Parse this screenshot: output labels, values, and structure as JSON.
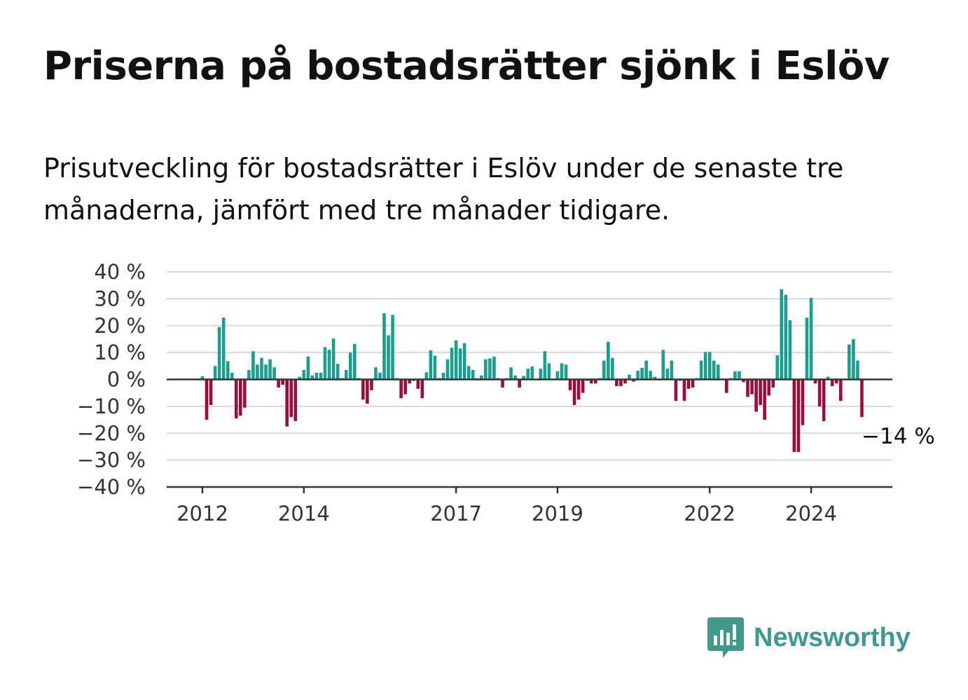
{
  "title": "Priserna på bostadsrätter sjönk i Eslöv",
  "subtitle": "Prisutveckling för bostadsrätter i Eslöv under de senaste tre månaderna, jämfört med tre månader tidigare.",
  "brand": {
    "name": "Newsworthy",
    "icon": "newsworthy-logo-icon"
  },
  "colors": {
    "positive": "#1a9e8f",
    "negative": "#9b0d3a",
    "grid": "#d9d9d9",
    "axis": "#333333",
    "brand": "#3f9a8c"
  },
  "chart_data": {
    "type": "bar",
    "title": "",
    "xlabel": "",
    "ylabel": "",
    "ylim": [
      -40,
      40
    ],
    "yticks": [
      40,
      30,
      20,
      10,
      0,
      -10,
      -20,
      -30,
      -40
    ],
    "ytick_labels": [
      "40 %",
      "30 %",
      "20 %",
      "10 %",
      "0 %",
      "−10 %",
      "−20 %",
      "−30 %",
      "−40 %"
    ],
    "xticks": [
      {
        "label": "2012",
        "month_index": 0
      },
      {
        "label": "2014",
        "month_index": 24
      },
      {
        "label": "2017",
        "month_index": 60
      },
      {
        "label": "2019",
        "month_index": 84
      },
      {
        "label": "2022",
        "month_index": 120
      },
      {
        "label": "2024",
        "month_index": 144
      }
    ],
    "x_start": "2012-01",
    "x_end": "2024-11",
    "grid": true,
    "annotation": {
      "text": "−14 %",
      "value": -14
    },
    "values": [
      1.2,
      -15,
      -9.5,
      5,
      19.5,
      23,
      6.8,
      2.5,
      -14.5,
      -13.5,
      -10.5,
      3.5,
      10.5,
      5.5,
      8,
      5.5,
      7.5,
      4.5,
      -3,
      -2,
      -17.5,
      -14,
      -15.5,
      1,
      3.5,
      8.5,
      1.5,
      2.5,
      2.5,
      12,
      11,
      15.2,
      5.8,
      0.5,
      3.5,
      10,
      13.2,
      0.5,
      -7.5,
      -9,
      -4,
      4.5,
      2.5,
      24.6,
      16.4,
      24,
      0.5,
      -7,
      -5.5,
      -1.5,
      -0.5,
      -3.5,
      -7,
      2.7,
      10.8,
      8.8,
      0.5,
      2.5,
      7.5,
      11.8,
      14.5,
      11.5,
      13.5,
      5,
      3.5,
      0.5,
      1.5,
      7.5,
      7.8,
      8.5,
      0.5,
      -3,
      0.5,
      4.5,
      1.5,
      -3,
      1.3,
      4,
      4.8,
      0.3,
      4,
      10.5,
      6,
      0.2,
      3,
      6,
      5.5,
      -4,
      -9.5,
      -7.5,
      -5,
      -0.5,
      -1.5,
      -1.5,
      0.5,
      7,
      14,
      8,
      -2.5,
      -2.5,
      -1.5,
      1.8,
      -0.8,
      3.2,
      4.3,
      7,
      3.2,
      1,
      -0.3,
      11,
      4,
      7,
      -8,
      -0.5,
      -8,
      -3.5,
      -3,
      0.5,
      7,
      10.2,
      10.2,
      7,
      5.5,
      0.3,
      -5,
      0.5,
      3,
      3,
      -1,
      -6.5,
      -5.5,
      -12,
      -9.5,
      -15,
      -6,
      -3,
      9,
      33.5,
      31.5,
      22,
      -27,
      -27,
      -17,
      23,
      30.3,
      -1.5,
      -10,
      -15.5,
      1,
      -2.5,
      -1.5,
      -8,
      0.3,
      13,
      15,
      7,
      -14
    ]
  }
}
